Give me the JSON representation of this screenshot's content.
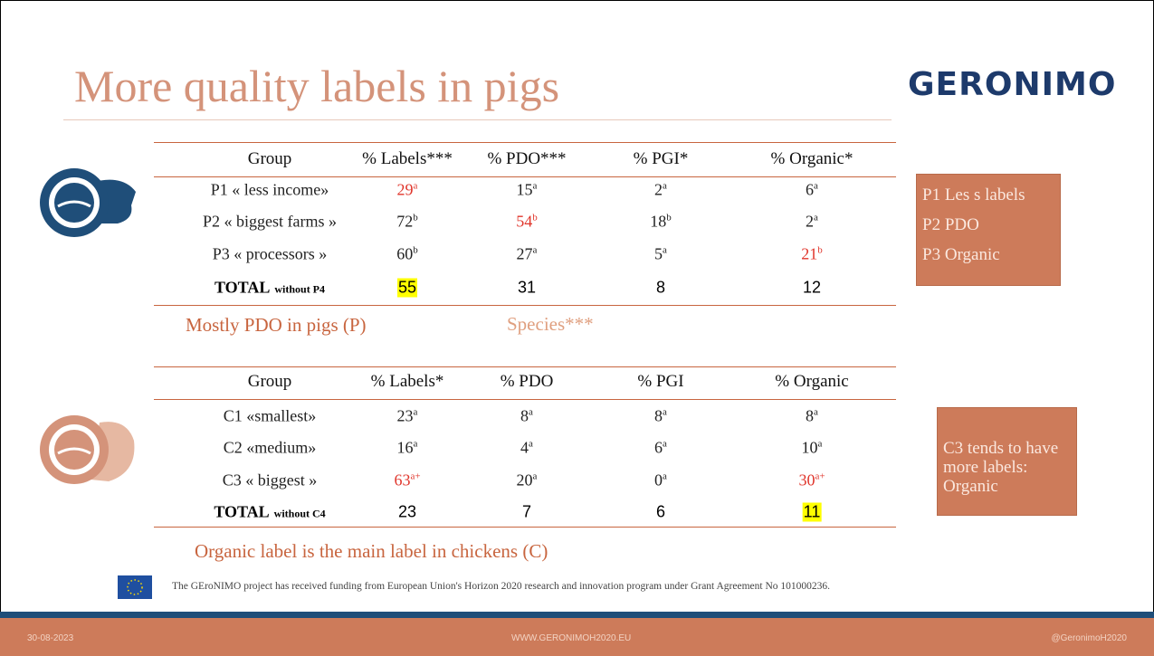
{
  "title": "More quality labels in pigs",
  "logo": "GERONIMO",
  "tables": [
    {
      "headers": [
        "Group",
        "% Labels***",
        "% PDO***",
        "% PGI*",
        "% Organic*"
      ],
      "rows": [
        [
          {
            "text": "P1 « less income»"
          },
          {
            "text": "29",
            "sup": "a",
            "color": "#e0352b"
          },
          {
            "text": "15",
            "sup": "a"
          },
          {
            "text": "2",
            "sup": "a"
          },
          {
            "text": "6",
            "sup": "a"
          }
        ],
        [
          {
            "text": "P2  « biggest farms »"
          },
          {
            "text": "72",
            "sup": "b"
          },
          {
            "text": "54",
            "sup": "b",
            "color": "#e0352b"
          },
          {
            "text": "18",
            "sup": "b"
          },
          {
            "text": "2",
            "sup": "a"
          }
        ],
        [
          {
            "text": "P3 « processors »"
          },
          {
            "text": "60",
            "sup": "b"
          },
          {
            "text": "27",
            "sup": "a"
          },
          {
            "text": "5",
            "sup": "a"
          },
          {
            "text": "21",
            "sup": "b",
            "color": "#e0352b"
          }
        ]
      ],
      "total": {
        "label": "TOTAL",
        "note": "without P4",
        "values": [
          {
            "text": "55",
            "background": "#ffff00"
          },
          {
            "text": "31"
          },
          {
            "text": "8"
          },
          {
            "text": "12"
          }
        ]
      },
      "caption": "Mostly PDO  in pigs (P)"
    },
    {
      "headers": [
        "Group",
        "% Labels*",
        "% PDO",
        "% PGI",
        "% Organic"
      ],
      "rows": [
        [
          {
            "text": "C1 «smallest»"
          },
          {
            "text": "23",
            "sup": "a"
          },
          {
            "text": "8",
            "sup": "a"
          },
          {
            "text": "8",
            "sup": "a"
          },
          {
            "text": "8",
            "sup": "a"
          }
        ],
        [
          {
            "text": "C2  «medium»"
          },
          {
            "text": "16",
            "sup": "a"
          },
          {
            "text": "4",
            "sup": "a"
          },
          {
            "text": "6",
            "sup": "a"
          },
          {
            "text": "10",
            "sup": "a"
          }
        ],
        [
          {
            "text": "C3 « biggest »"
          },
          {
            "text": "63",
            "sup": "a+",
            "color": "#e0352b"
          },
          {
            "text": "20",
            "sup": "a"
          },
          {
            "text": "0",
            "sup": "a"
          },
          {
            "text": "30",
            "sup": "a+",
            "color": "#e0352b"
          }
        ]
      ],
      "total": {
        "label": "TOTAL",
        "note": "without C4",
        "values": [
          {
            "text": "23"
          },
          {
            "text": "7"
          },
          {
            "text": "6"
          },
          {
            "text": "11",
            "background": "#ffff00"
          }
        ]
      },
      "caption": "Organic label is the main label in  chickens (C)"
    }
  ],
  "species": "Species***",
  "notes": [
    [
      "P1 Les s labels",
      "P2 PDO",
      "P3 Organic"
    ],
    [
      "C3 tends to have more labels: Organic"
    ]
  ],
  "funding": "The GEroNIMO project has received funding from European Union's Horizon 2020 research and innovation program under Grant Agreement No 101000236.",
  "footer": {
    "date": "30-08-2023",
    "url": "WWW.GERONIMOH2020.EU",
    "handle": "@GeronimoH2020"
  }
}
